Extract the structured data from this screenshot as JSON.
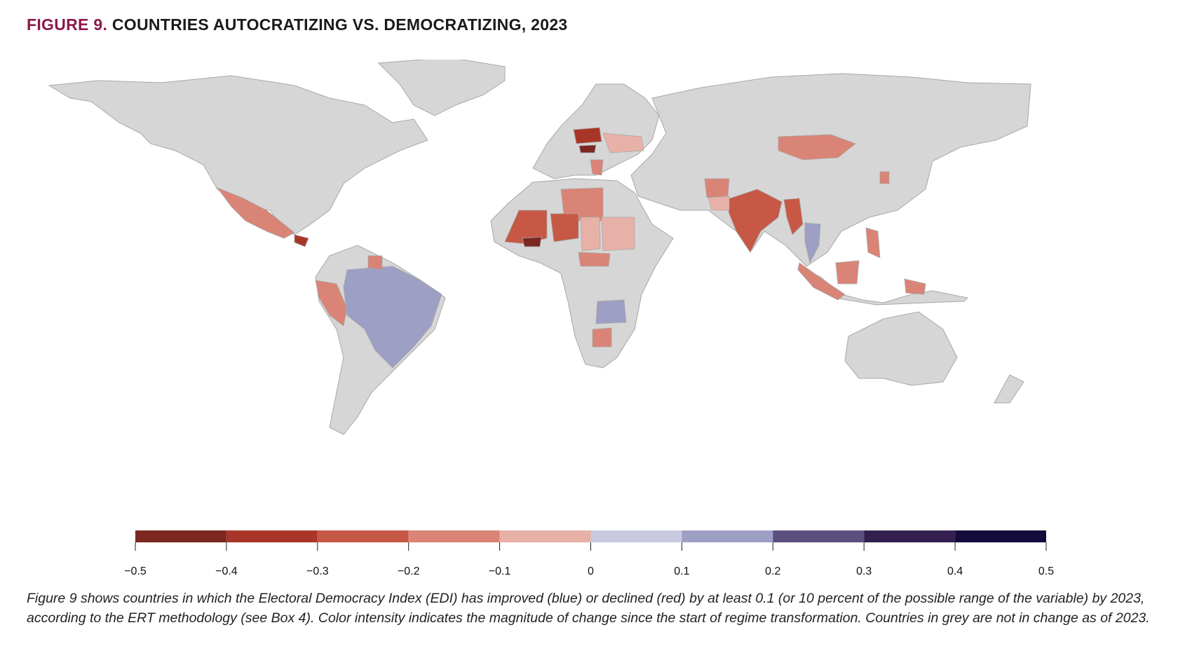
{
  "title": {
    "figure_label": "FIGURE 9.",
    "text": "COUNTRIES AUTOCRATIZING VS. DEMOCRATIZING, 2023"
  },
  "legend": {
    "ticks": [
      "−0.5",
      "−0.4",
      "−0.3",
      "−0.2",
      "−0.1",
      "0",
      "0.1",
      "0.2",
      "0.3",
      "0.4",
      "0.5"
    ],
    "bins": [
      {
        "from": -0.5,
        "to": -0.4,
        "color": "#7a2820"
      },
      {
        "from": -0.4,
        "to": -0.3,
        "color": "#a83628"
      },
      {
        "from": -0.3,
        "to": -0.2,
        "color": "#c75846"
      },
      {
        "from": -0.2,
        "to": -0.1,
        "color": "#d98476"
      },
      {
        "from": -0.1,
        "to": 0.0,
        "color": "#e8b1a8"
      },
      {
        "from": 0.0,
        "to": 0.1,
        "color": "#c9cae0"
      },
      {
        "from": 0.1,
        "to": 0.2,
        "color": "#9d9fc4"
      },
      {
        "from": 0.2,
        "to": 0.3,
        "color": "#5a4f7f"
      },
      {
        "from": 0.3,
        "to": 0.4,
        "color": "#33204f"
      },
      {
        "from": 0.4,
        "to": 0.5,
        "color": "#150a3c"
      }
    ]
  },
  "map_colors": {
    "no_change": "#d6d6d6",
    "border": "#a8a8a8",
    "ocean": "#ffffff"
  },
  "caption": "Figure 9 shows countries in which the Electoral Democracy Index (EDI) has improved (blue) or declined (red) by at least 0.1 (or 10 percent of the possible range of the variable) by 2023, according to the ERT methodology (see Box 4). Color intensity indicates the magnitude of change since the start of regime transformation. Countries in grey are not in change as of 2023."
}
